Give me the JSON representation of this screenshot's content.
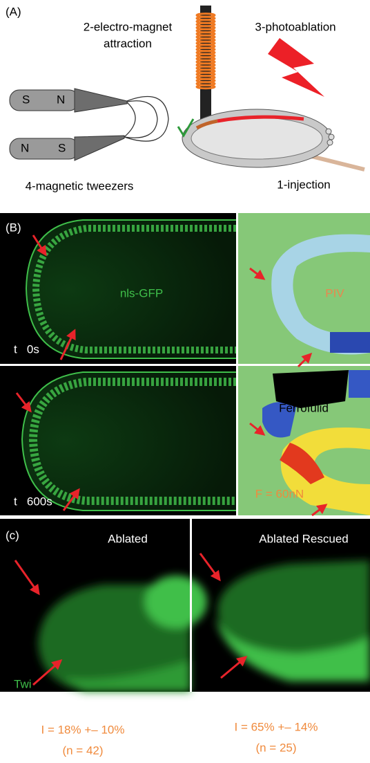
{
  "panel_a": {
    "label": "(A)",
    "electromagnet": [
      "2-electro-magnet",
      "attraction"
    ],
    "photoablation": "3-photoablation",
    "tweezers": "4-magnetic tweezers",
    "injection": "1-injection",
    "magnet_top": [
      "S",
      "N"
    ],
    "magnet_bottom": [
      "N",
      "S"
    ]
  },
  "panel_b": {
    "label": "(B)",
    "gfp_label": "nls-GFP",
    "piv_label": "PIV",
    "time_top": "t   0s",
    "time_bottom": "t   600s",
    "ferrofluid_label": "Ferrofulid",
    "force_label": "F = 60nN"
  },
  "panel_c": {
    "label": "(c)",
    "left_title": "Ablated",
    "right_title": "Ablated Rescued",
    "stain_label": "Twi",
    "left_result": [
      "I = 18% +– 10%",
      "(n = 42)"
    ],
    "right_result": [
      "I = 65% +– 14%",
      "(n = 25)"
    ]
  }
}
